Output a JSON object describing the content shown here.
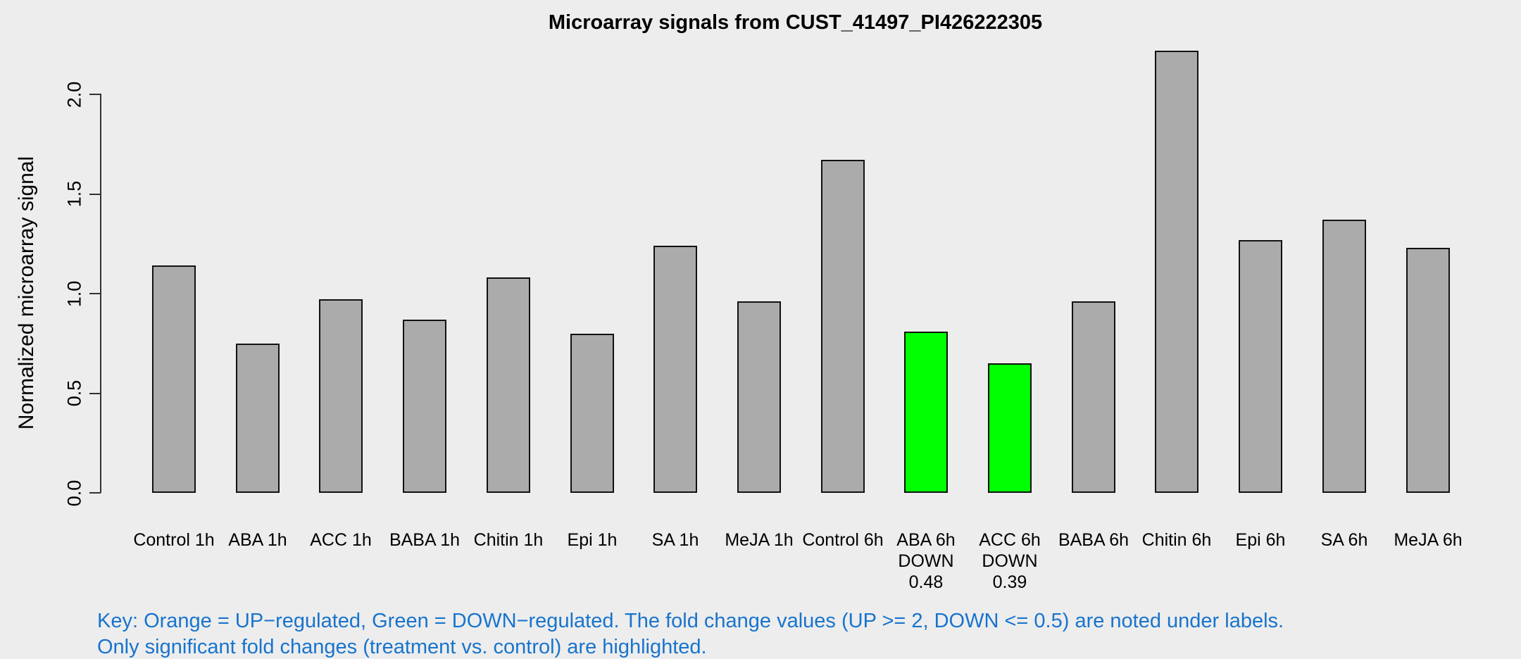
{
  "chart_data": {
    "type": "bar",
    "title": "Microarray signals from CUST_41497_PI426222305",
    "xlabel": "",
    "ylabel": "Normalized microarray signal",
    "ylim": [
      0,
      2.25
    ],
    "yticks": [
      "0.0",
      "0.5",
      "1.0",
      "1.5",
      "2.0"
    ],
    "grid": false,
    "legend": "none",
    "categories": [
      "Control 1h",
      "ABA 1h",
      "ACC 1h",
      "BABA 1h",
      "Chitin 1h",
      "Epi 1h",
      "SA 1h",
      "MeJA 1h",
      "Control 6h",
      "ABA 6h",
      "ACC 6h",
      "BABA 6h",
      "Chitin 6h",
      "Epi 6h",
      "SA 6h",
      "MeJA 6h"
    ],
    "values": [
      1.14,
      0.75,
      0.97,
      0.87,
      1.08,
      0.8,
      1.24,
      0.96,
      1.67,
      0.81,
      0.65,
      0.96,
      2.22,
      1.27,
      1.37,
      1.23
    ],
    "bar_colors": [
      "gray",
      "gray",
      "gray",
      "gray",
      "gray",
      "gray",
      "gray",
      "gray",
      "gray",
      "green",
      "green",
      "gray",
      "gray",
      "gray",
      "gray",
      "gray"
    ],
    "annotations": [
      null,
      null,
      null,
      null,
      null,
      null,
      null,
      null,
      null,
      [
        "DOWN",
        "0.48"
      ],
      [
        "DOWN",
        "0.39"
      ],
      null,
      null,
      null,
      null,
      null
    ]
  },
  "key": {
    "line1": "Key: Orange = UP−regulated, Green = DOWN−regulated. The fold change values (UP >= 2, DOWN <= 0.5) are noted under labels.",
    "line2": "Only significant fold changes (treatment vs. control) are highlighted."
  },
  "colors": {
    "background": "#EDEDED",
    "bar_gray": "#ABABAB",
    "down_green": "#00FF00",
    "up_orange": "#FFA500",
    "bar_border": "#111111",
    "axis": "#333333",
    "key_text": "#1874CD",
    "text": "#000000"
  }
}
